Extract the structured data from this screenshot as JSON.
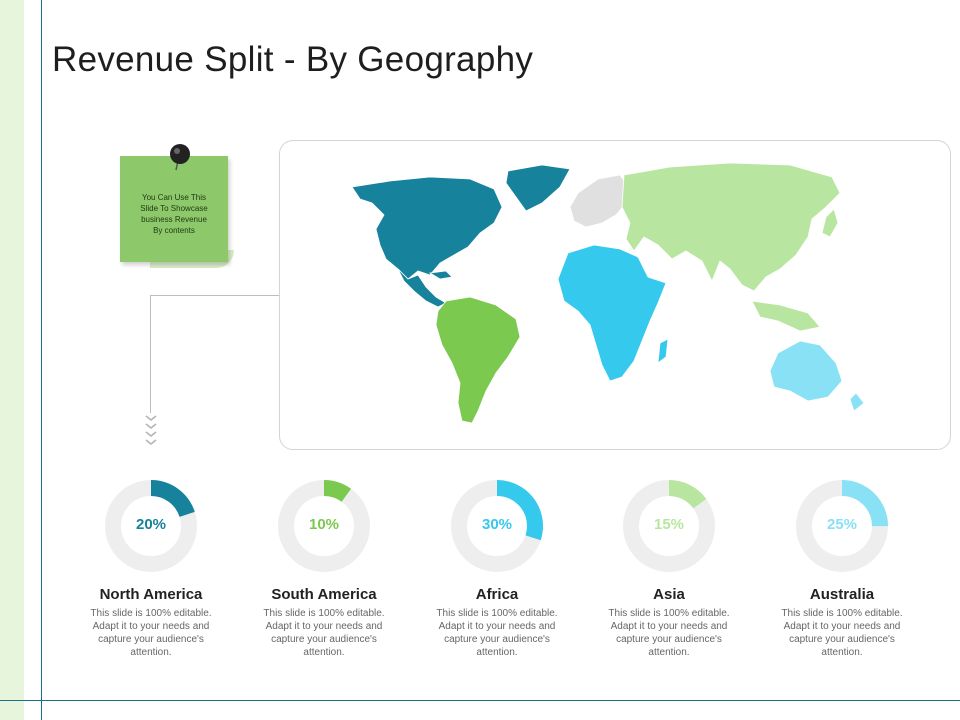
{
  "title": "Revenue Split - By Geography",
  "note": {
    "text": "You Can Use This Slide To Showcase business Revenue By contents",
    "lines": [
      "You Can Use This",
      "Slide To Showcase",
      "business Revenue",
      "By contents"
    ]
  },
  "colors": {
    "north_america": "#17829b",
    "south_america": "#7cc94f",
    "africa": "#36c9ee",
    "asia": "#b8e6a0",
    "australia": "#88e1f5",
    "other": "#e0e0e0",
    "track": "#eeeeee",
    "note_green": "#8dc86b"
  },
  "chart_data": {
    "type": "pie",
    "title": "Revenue Split - By Geography",
    "categories": [
      "North America",
      "South America",
      "Africa",
      "Asia",
      "Australia"
    ],
    "values": [
      20,
      10,
      30,
      15,
      25
    ],
    "labels": [
      "20%",
      "10%",
      "30%",
      "15%",
      "25%"
    ],
    "unit": "%",
    "descriptions": [
      "This slide is 100% editable. Adapt it to your needs and capture your audience's attention.",
      "This slide is 100% editable. Adapt it to your needs and capture your audience's attention.",
      "This slide is 100% editable. Adapt it to your needs and capture your audience's attention.",
      "This slide is 100% editable. Adapt it to your needs and capture your audience's attention.",
      "This slide is 100% editable. Adapt it to your needs and capture your audience's attention."
    ],
    "colors": [
      "#17829b",
      "#7cc94f",
      "#36c9ee",
      "#b8e6a0",
      "#88e1f5"
    ]
  }
}
